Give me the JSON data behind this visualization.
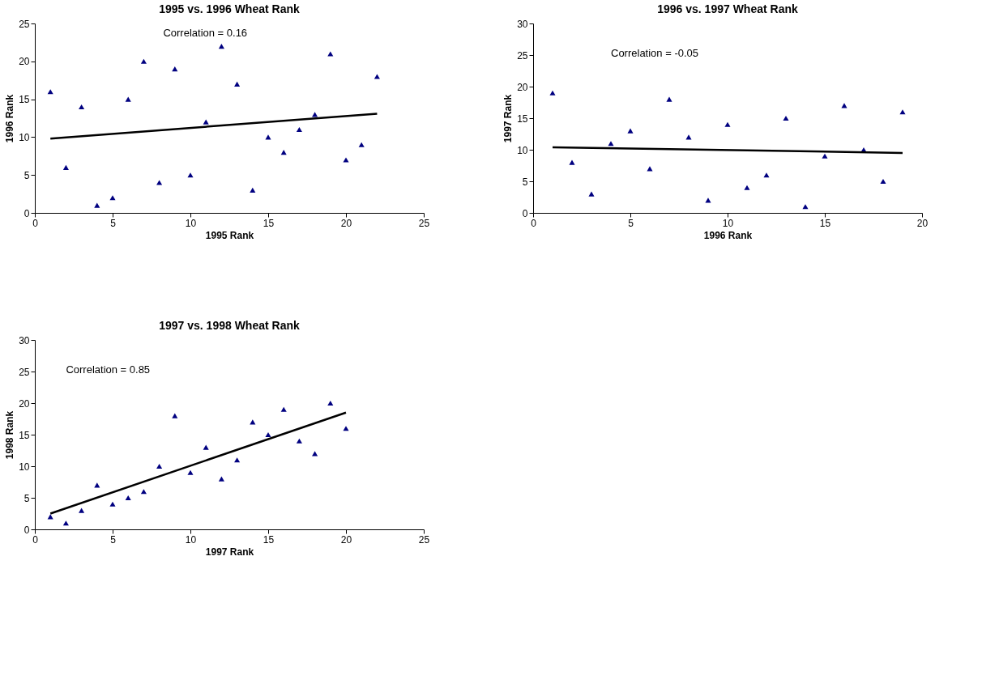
{
  "chart_data": [
    {
      "type": "scatter",
      "title": "1995 vs. 1996 Wheat Rank",
      "xlabel": "1995 Rank",
      "ylabel": "1996 Rank",
      "annotations": [
        "Correlation = 0.16"
      ],
      "xlim": [
        0,
        25
      ],
      "xticks": [
        0,
        5,
        10,
        15,
        20,
        25
      ],
      "ylim": [
        0,
        25
      ],
      "yticks": [
        0,
        5,
        10,
        15,
        20,
        25
      ],
      "grid": false,
      "series": [
        {
          "type": "scatter",
          "marker": "triangle",
          "color": "#000080",
          "x": [
            1,
            2,
            3,
            4,
            5,
            6,
            7,
            8,
            9,
            10,
            11,
            12,
            13,
            14,
            15,
            16,
            17,
            18,
            19,
            20,
            21,
            22
          ],
          "values": [
            16,
            6,
            14,
            1,
            2,
            15,
            20,
            4,
            19,
            5,
            12,
            22,
            17,
            3,
            10,
            8,
            11,
            13,
            21,
            7,
            9,
            18
          ]
        },
        {
          "type": "line",
          "color": "#000000",
          "x": [
            1,
            22
          ],
          "values": [
            9.8,
            13.1
          ]
        }
      ]
    },
    {
      "type": "scatter",
      "title": "1996 vs. 1997 Wheat Rank",
      "xlabel": "1996 Rank",
      "ylabel": "1997 Rank",
      "annotations": [
        "Correlation = -0.05"
      ],
      "xlim": [
        0,
        20
      ],
      "xticks": [
        0,
        5,
        10,
        15,
        20
      ],
      "ylim": [
        0,
        30
      ],
      "yticks": [
        0,
        5,
        10,
        15,
        20,
        25,
        30
      ],
      "grid": false,
      "series": [
        {
          "type": "scatter",
          "marker": "triangle",
          "color": "#000080",
          "x": [
            1,
            2,
            3,
            4,
            5,
            6,
            7,
            8,
            9,
            10,
            11,
            12,
            13,
            14,
            15,
            16,
            17,
            18,
            19
          ],
          "values": [
            19,
            8,
            3,
            11,
            13,
            7,
            18,
            12,
            2,
            14,
            4,
            6,
            15,
            1,
            9,
            17,
            10,
            5,
            16
          ]
        },
        {
          "type": "line",
          "color": "#000000",
          "x": [
            1,
            19
          ],
          "values": [
            10.4,
            9.5
          ]
        }
      ]
    },
    {
      "type": "scatter",
      "title": "1997 vs. 1998 Wheat Rank",
      "xlabel": "1997 Rank",
      "ylabel": "1998 Rank",
      "annotations": [
        "Correlation = 0.85"
      ],
      "xlim": [
        0,
        25
      ],
      "xticks": [
        0,
        5,
        10,
        15,
        20,
        25
      ],
      "ylim": [
        0,
        30
      ],
      "yticks": [
        0,
        5,
        10,
        15,
        20,
        25,
        30
      ],
      "grid": false,
      "series": [
        {
          "type": "scatter",
          "marker": "triangle",
          "color": "#000080",
          "x": [
            1,
            2,
            3,
            4,
            5,
            6,
            7,
            8,
            9,
            10,
            11,
            12,
            13,
            14,
            15,
            16,
            17,
            18,
            19,
            20
          ],
          "values": [
            2,
            1,
            3,
            7,
            4,
            5,
            6,
            10,
            18,
            9,
            13,
            8,
            11,
            17,
            15,
            19,
            14,
            12,
            20,
            16
          ]
        },
        {
          "type": "line",
          "color": "#000000",
          "x": [
            1,
            20
          ],
          "values": [
            2.5,
            18.5
          ]
        }
      ]
    }
  ]
}
